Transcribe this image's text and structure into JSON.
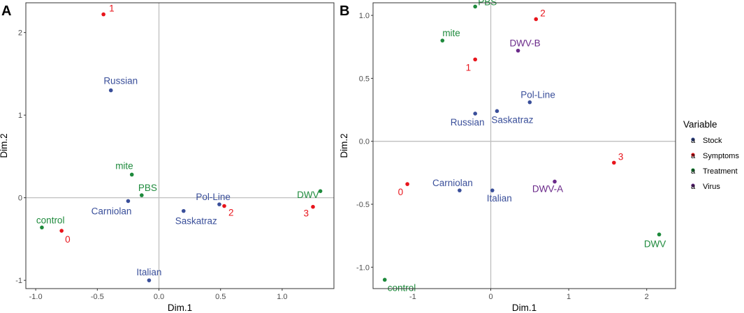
{
  "colors": {
    "Stock": "#3a4f9a",
    "Symptoms": "#e8141b",
    "Treatment": "#1e8a3c",
    "Virus": "#6b2a8a",
    "axisLine": "#bfbfbf",
    "frame": "#333333"
  },
  "legend": {
    "title": "Variable",
    "items": [
      {
        "group": "Stock",
        "label": "Stock",
        "glyph": "a"
      },
      {
        "group": "Symptoms",
        "label": "Symptoms",
        "glyph": "a"
      },
      {
        "group": "Treatment",
        "label": "Treatment",
        "glyph": "a"
      },
      {
        "group": "Virus",
        "label": "Virus",
        "glyph": "a"
      }
    ]
  },
  "chart_data": [
    {
      "type": "scatter",
      "panel": "A",
      "xlabel": "Dim.1",
      "ylabel": "Dim.2",
      "xlim": [
        -1.08,
        1.42
      ],
      "ylim": [
        -1.1,
        2.36
      ],
      "xticks": [
        -1.0,
        -0.5,
        0.0,
        0.5,
        1.0
      ],
      "xtick_labels": [
        "-1.0",
        "-0.5",
        "0.0",
        "0.5",
        "1.0"
      ],
      "yticks": [
        -1,
        0,
        1,
        2
      ],
      "ytick_labels": [
        "-1",
        "0",
        "1",
        "2"
      ],
      "points": [
        {
          "label": "1",
          "group": "Symptoms",
          "x": -0.45,
          "y": 2.22,
          "anchor": "start",
          "dx": 8,
          "dy": -4
        },
        {
          "label": "Russian",
          "group": "Stock",
          "x": -0.39,
          "y": 1.3,
          "anchor": "middle",
          "dx": 14,
          "dy": -9
        },
        {
          "label": "mite",
          "group": "Treatment",
          "x": -0.22,
          "y": 0.28,
          "anchor": "end",
          "dx": 2,
          "dy": -8
        },
        {
          "label": "PBS",
          "group": "Treatment",
          "x": -0.14,
          "y": 0.03,
          "anchor": "start",
          "dx": -5,
          "dy": -6
        },
        {
          "label": "Carniolan",
          "group": "Stock",
          "x": -0.25,
          "y": -0.04,
          "anchor": "end",
          "dx": 5,
          "dy": 19
        },
        {
          "label": "Pol-Line",
          "group": "Stock",
          "x": 0.49,
          "y": -0.08,
          "anchor": "end",
          "dx": 16,
          "dy": -6
        },
        {
          "label": "2",
          "group": "Symptoms",
          "x": 0.53,
          "y": -0.1,
          "anchor": "start",
          "dx": 6,
          "dy": 14
        },
        {
          "label": "Saskatraz",
          "group": "Stock",
          "x": 0.2,
          "y": -0.16,
          "anchor": "middle",
          "dx": 18,
          "dy": 19
        },
        {
          "label": "DWV",
          "group": "Treatment",
          "x": 1.31,
          "y": 0.08,
          "anchor": "end",
          "dx": -2,
          "dy": 10
        },
        {
          "label": "3",
          "group": "Symptoms",
          "x": 1.25,
          "y": -0.11,
          "anchor": "end",
          "dx": -6,
          "dy": 14
        },
        {
          "label": "control",
          "group": "Treatment",
          "x": -0.95,
          "y": -0.36,
          "anchor": "start",
          "dx": -8,
          "dy": -6
        },
        {
          "label": "0",
          "group": "Symptoms",
          "x": -0.79,
          "y": -0.4,
          "anchor": "start",
          "dx": 5,
          "dy": 17
        },
        {
          "label": "Italian",
          "group": "Stock",
          "x": -0.08,
          "y": -1.0,
          "anchor": "middle",
          "dx": 0,
          "dy": -7
        }
      ]
    },
    {
      "type": "scatter",
      "panel": "B",
      "xlabel": "Dim.1",
      "ylabel": "Dim.2",
      "xlim": [
        -1.51,
        2.37
      ],
      "ylim": [
        -1.17,
        1.1
      ],
      "xticks": [
        -1,
        0,
        1,
        2
      ],
      "xtick_labels": [
        "-1",
        "0",
        "1",
        "2"
      ],
      "yticks": [
        -1.0,
        -0.5,
        0.0,
        0.5,
        1.0
      ],
      "ytick_labels": [
        "-1.0",
        "-0.5",
        "0.0",
        "0.5",
        "1.0"
      ],
      "points": [
        {
          "label": "PBS",
          "group": "Treatment",
          "x": -0.2,
          "y": 1.07,
          "anchor": "start",
          "dx": 4,
          "dy": -2
        },
        {
          "label": "2",
          "group": "Symptoms",
          "x": 0.58,
          "y": 0.97,
          "anchor": "start",
          "dx": 6,
          "dy": -4
        },
        {
          "label": "mite",
          "group": "Treatment",
          "x": -0.62,
          "y": 0.8,
          "anchor": "start",
          "dx": 0,
          "dy": -6
        },
        {
          "label": "DWV-B",
          "group": "Virus",
          "x": 0.35,
          "y": 0.72,
          "anchor": "middle",
          "dx": 10,
          "dy": -6
        },
        {
          "label": "1",
          "group": "Symptoms",
          "x": -0.2,
          "y": 0.65,
          "anchor": "end",
          "dx": -6,
          "dy": 16
        },
        {
          "label": "Pol-Line",
          "group": "Stock",
          "x": 0.5,
          "y": 0.31,
          "anchor": "start",
          "dx": -13,
          "dy": -6
        },
        {
          "label": "Russian",
          "group": "Stock",
          "x": -0.2,
          "y": 0.22,
          "anchor": "middle",
          "dx": -11,
          "dy": 17
        },
        {
          "label": "Saskatraz",
          "group": "Stock",
          "x": 0.08,
          "y": 0.24,
          "anchor": "middle",
          "dx": 22,
          "dy": 17
        },
        {
          "label": "3",
          "group": "Symptoms",
          "x": 1.58,
          "y": -0.17,
          "anchor": "start",
          "dx": 6,
          "dy": -4
        },
        {
          "label": "0",
          "group": "Symptoms",
          "x": -1.07,
          "y": -0.34,
          "anchor": "end",
          "dx": -6,
          "dy": 16
        },
        {
          "label": "Carniolan",
          "group": "Stock",
          "x": -0.4,
          "y": -0.39,
          "anchor": "middle",
          "dx": -10,
          "dy": -6
        },
        {
          "label": "Italian",
          "group": "Stock",
          "x": 0.02,
          "y": -0.39,
          "anchor": "middle",
          "dx": 10,
          "dy": 16
        },
        {
          "label": "DWV-A",
          "group": "Virus",
          "x": 0.82,
          "y": -0.32,
          "anchor": "middle",
          "dx": -10,
          "dy": 15
        },
        {
          "label": "DWV",
          "group": "Treatment",
          "x": 2.16,
          "y": -0.74,
          "anchor": "middle",
          "dx": -6,
          "dy": 18
        },
        {
          "label": "control",
          "group": "Treatment",
          "x": -1.36,
          "y": -1.1,
          "anchor": "start",
          "dx": 4,
          "dy": 16
        }
      ]
    }
  ]
}
